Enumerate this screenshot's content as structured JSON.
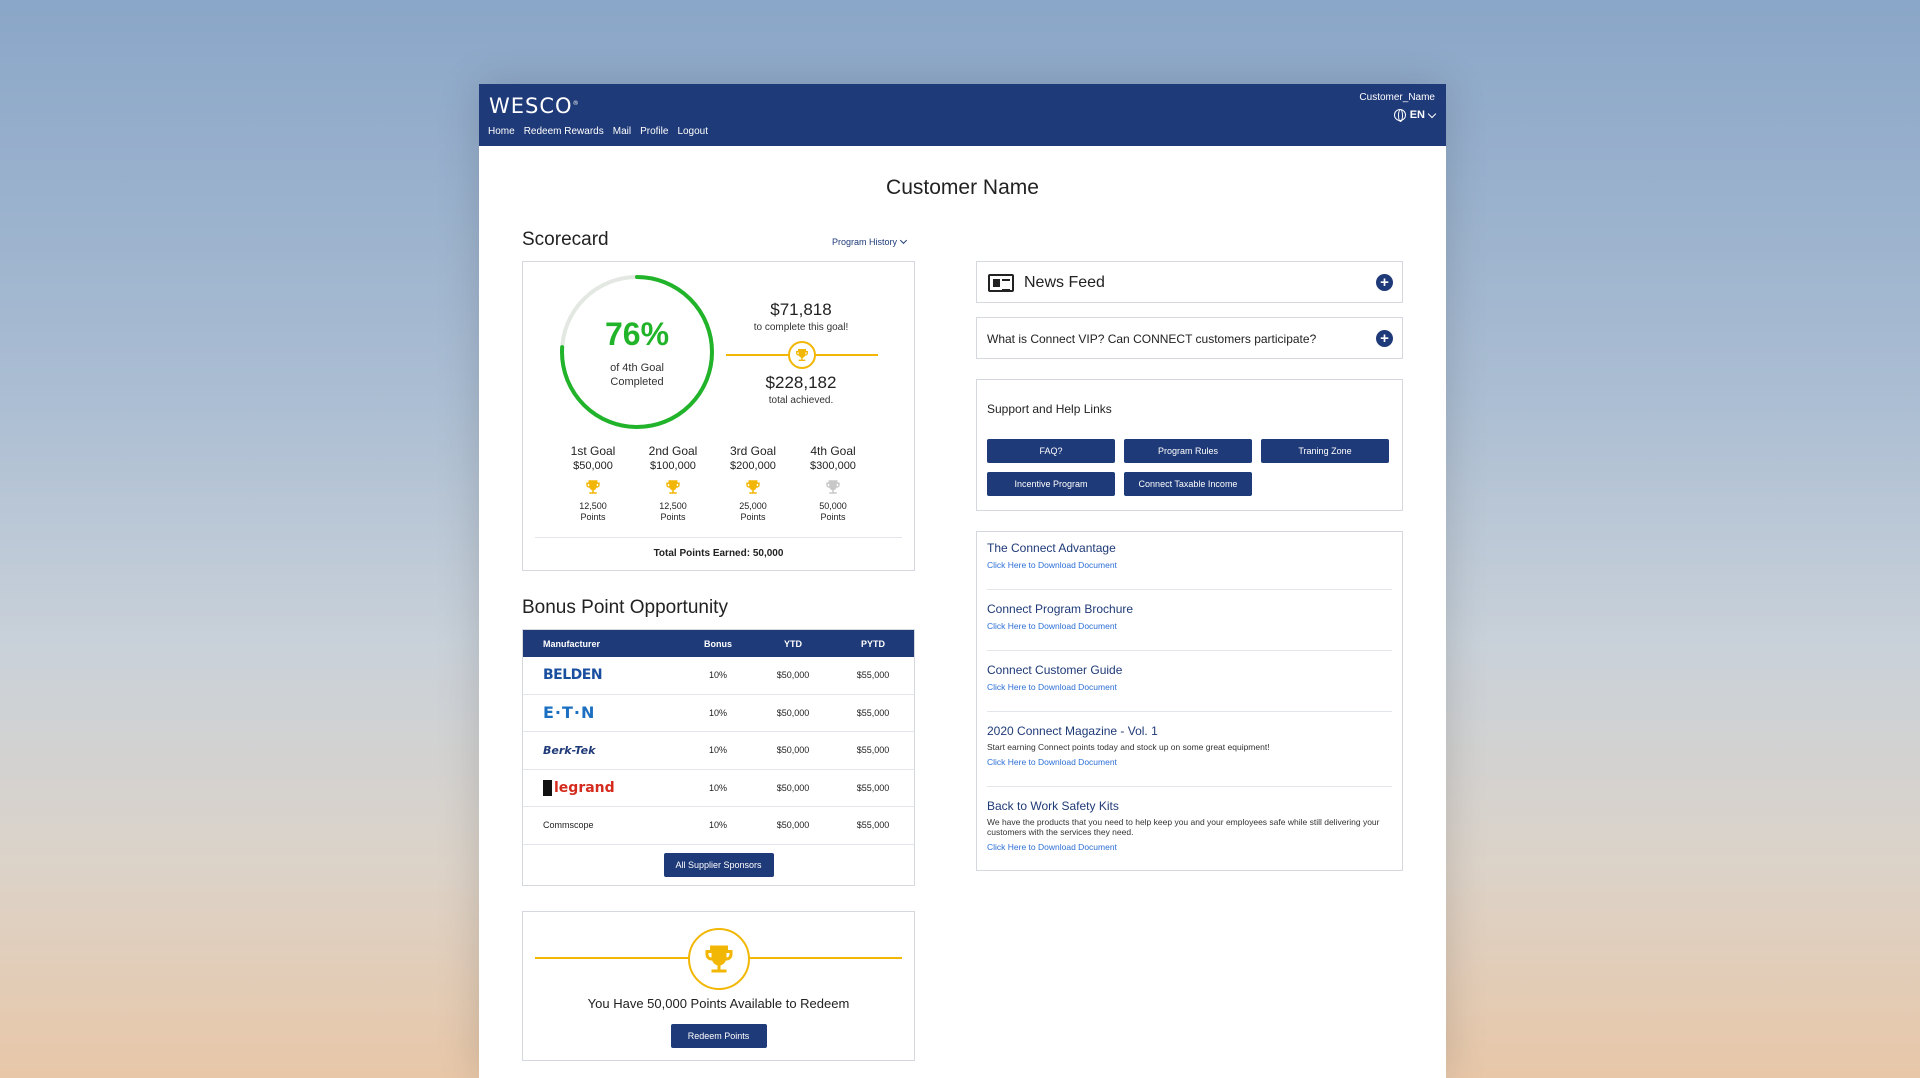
{
  "header": {
    "logo": "WESCO",
    "logo_mark": "®",
    "nav": [
      "Home",
      "Redeem Rewards",
      "Mail",
      "Profile",
      "Logout"
    ],
    "user": "Customer_Name",
    "lang": "EN"
  },
  "page_title": "Customer Name",
  "scorecard": {
    "title": "Scorecard",
    "program_history": "Program History",
    "percent": "76%",
    "percent_value": 0.76,
    "percent_sub1": "of 4th Goal",
    "percent_sub2": "Completed",
    "remaining_amount": "$71,818",
    "remaining_note": "to complete this goal!",
    "achieved_amount": "$228,182",
    "achieved_note": "total achieved.",
    "goals": [
      {
        "name": "1st Goal",
        "amount": "$50,000",
        "points": "12,500",
        "unit": "Points",
        "achieved": true
      },
      {
        "name": "2nd Goal",
        "amount": "$100,000",
        "points": "12,500",
        "unit": "Points",
        "achieved": true
      },
      {
        "name": "3rd Goal",
        "amount": "$200,000",
        "points": "25,000",
        "unit": "Points",
        "achieved": true
      },
      {
        "name": "4th Goal",
        "amount": "$300,000",
        "points": "50,000",
        "unit": "Points",
        "achieved": false
      }
    ],
    "total_points": "Total Points Earned: 50,000"
  },
  "bonus": {
    "title": "Bonus Point Opportunity",
    "columns": [
      "Manufacturer",
      "Bonus",
      "YTD",
      "PYTD"
    ],
    "rows": [
      {
        "manufacturer": "BELDEN",
        "bonus": "10%",
        "ytd": "$50,000",
        "pytd": "$55,000"
      },
      {
        "manufacturer": "E·T·N",
        "bonus": "10%",
        "ytd": "$50,000",
        "pytd": "$55,000"
      },
      {
        "manufacturer": "Berk-Tek",
        "bonus": "10%",
        "ytd": "$50,000",
        "pytd": "$55,000"
      },
      {
        "manufacturer": "legrand",
        "bonus": "10%",
        "ytd": "$50,000",
        "pytd": "$55,000"
      },
      {
        "manufacturer": "Commscope",
        "bonus": "10%",
        "ytd": "$50,000",
        "pytd": "$55,000"
      }
    ],
    "sponsors_button": "All Supplier Sponsors"
  },
  "redeem": {
    "text": "You Have 50,000 Points Available to Redeem",
    "button": "Redeem Points"
  },
  "news": {
    "title": "News Feed",
    "faq_question": "What is Connect VIP? Can CONNECT customers participate?"
  },
  "support": {
    "title": "Support and Help Links",
    "buttons": [
      "FAQ?",
      "Program Rules",
      "Traning Zone",
      "Incentive Program",
      "Connect Taxable Income"
    ]
  },
  "documents": [
    {
      "title": "The Connect Advantage",
      "desc": "",
      "link": "Click Here to Download Document"
    },
    {
      "title": "Connect Program Brochure",
      "desc": "",
      "link": "Click Here to Download Document"
    },
    {
      "title": "Connect Customer Guide",
      "desc": "",
      "link": "Click Here to Download Document"
    },
    {
      "title": "2020 Connect Magazine - Vol. 1",
      "desc": "Start earning Connect points today and stock up on some great equipment!",
      "link": "Click Here to Download Document"
    },
    {
      "title": "Back to Work Safety Kits",
      "desc": "We have the products that you need to help keep you and your employees safe while still delivering your customers with the services they need.",
      "link": "Click Here to Download Document"
    }
  ],
  "colors": {
    "brand": "#1f3a78",
    "progress": "#21b42a",
    "trophy": "#f2b705",
    "trophy_inactive": "#c8c8c8",
    "link": "#2c6fd6"
  }
}
